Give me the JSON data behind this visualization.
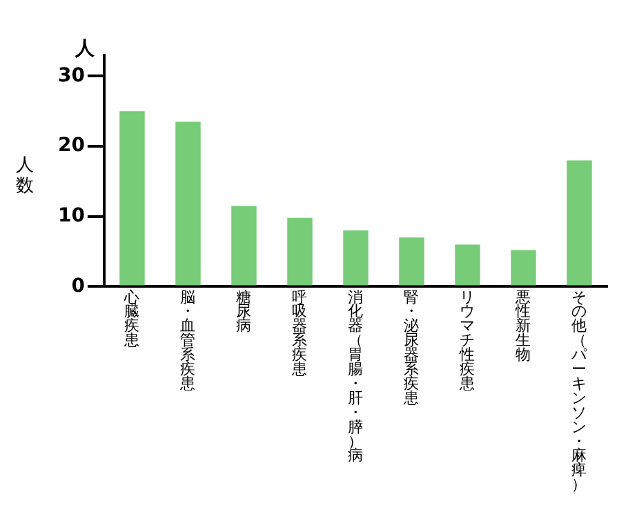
{
  "chart_data": {
    "type": "bar",
    "ylabel": "人数",
    "annotations": [
      "人"
    ],
    "categories": [
      "心臓疾患",
      "脳・血管系疾患",
      "糖尿病",
      "呼吸器系疾患",
      "消化器（胃腸・肝・膵）病",
      "腎・泌尿器系疾患",
      "リウマチ性疾患",
      "悪性新生物",
      "その他（パーキンソン・麻痺）"
    ],
    "values": [
      25,
      23.5,
      11.5,
      9.8,
      8,
      7,
      6,
      5.2,
      18
    ],
    "color": "#77cc77",
    "ylim": [
      0,
      33
    ],
    "yticks": [
      0,
      10,
      20,
      30
    ],
    "grid": false,
    "legend": false
  }
}
